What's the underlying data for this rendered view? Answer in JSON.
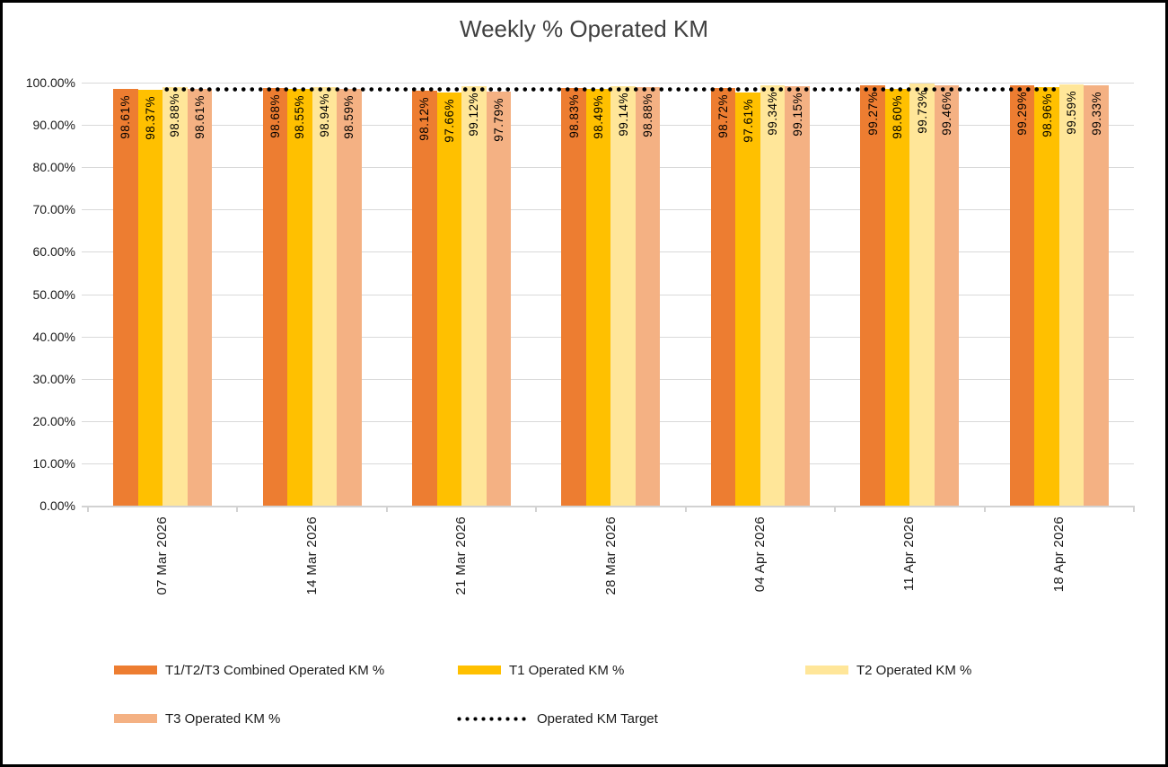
{
  "chart_data": {
    "type": "bar",
    "title": "Weekly % Operated KM",
    "categories": [
      "07 Mar 2026",
      "14 Mar 2026",
      "21 Mar 2026",
      "28 Mar 2026",
      "04 Apr 2026",
      "11 Apr 2026",
      "18 Apr 2026"
    ],
    "series": [
      {
        "name": "T1/T2/T3 Combined Operated KM %",
        "color": "#ED7D31",
        "values": [
          98.61,
          98.68,
          98.12,
          98.83,
          98.72,
          99.27,
          99.29
        ]
      },
      {
        "name": "T1 Operated KM %",
        "color": "#FFC000",
        "values": [
          98.37,
          98.55,
          97.66,
          98.49,
          97.61,
          98.6,
          98.96
        ]
      },
      {
        "name": "T2 Operated KM %",
        "color": "#FFE699",
        "values": [
          98.88,
          98.94,
          99.12,
          99.14,
          99.34,
          99.73,
          99.59
        ]
      },
      {
        "name": "T3 Operated KM %",
        "color": "#F4B183",
        "values": [
          98.61,
          98.59,
          97.79,
          98.88,
          99.15,
          99.46,
          99.33
        ]
      }
    ],
    "target_line": {
      "name": "Operated KM Target",
      "value": 98.4,
      "color": "#000000",
      "style": "dotted"
    },
    "data_label_format": "0.00%",
    "y_axis": {
      "tick_labels": [
        "100.00%",
        "90.00%",
        "80.00%",
        "70.00%",
        "60.00%",
        "50.00%",
        "40.00%",
        "30.00%",
        "20.00%",
        "10.00%",
        "0.00%"
      ],
      "min": 0,
      "max": 100
    },
    "grid": true,
    "legend_position": "bottom"
  },
  "colors": {
    "gridline": "#D9D9D9",
    "axis_line": "#D2D2D2",
    "text": "#1a1a1a",
    "title": "#404040",
    "frame_border": "#000000",
    "background": "#FFFFFF"
  }
}
